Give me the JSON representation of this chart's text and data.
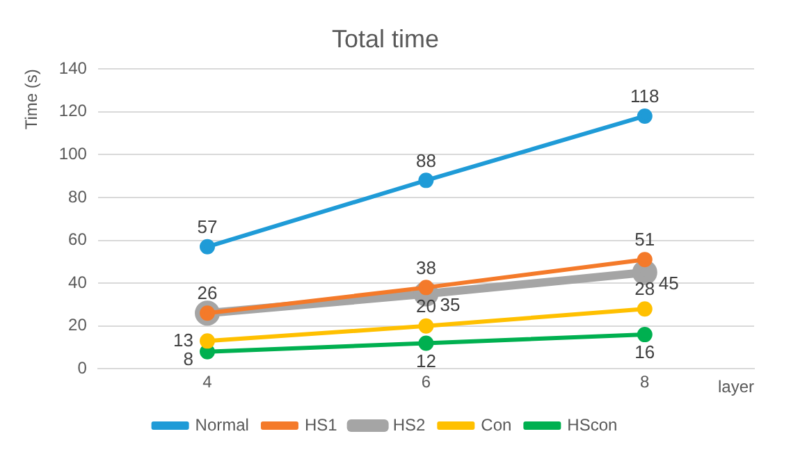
{
  "chart_data": {
    "type": "line",
    "title": "Total time",
    "ylabel": "Time (s)",
    "xlabel": "layer",
    "categories": [
      "4",
      "6",
      "8"
    ],
    "series": [
      {
        "name": "Normal",
        "color": "#1f9bd7",
        "values": [
          57,
          88,
          118
        ]
      },
      {
        "name": "HS1",
        "color": "#f47a2a",
        "values": [
          26,
          38,
          51
        ]
      },
      {
        "name": "HS2",
        "color": "#a5a5a5",
        "values": [
          26,
          35,
          45
        ],
        "value_labels": [
          null,
          "35",
          "45"
        ]
      },
      {
        "name": "Con",
        "color": "#ffc000",
        "values": [
          13,
          20,
          28
        ]
      },
      {
        "name": "HScon",
        "color": "#00b050",
        "values": [
          8,
          12,
          16
        ]
      }
    ],
    "ylim": [
      0,
      140
    ],
    "yticks": [
      0,
      20,
      40,
      60,
      80,
      100,
      120,
      140
    ],
    "grid": "y",
    "legend": "bottom",
    "marker": "circle",
    "line_style": "solid",
    "data_labels": true
  }
}
